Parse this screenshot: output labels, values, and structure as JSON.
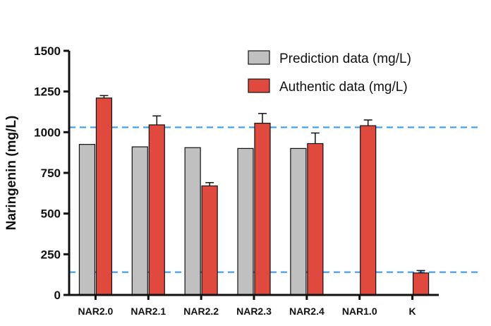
{
  "chart_data": {
    "type": "bar",
    "ylabel": "Naringenin (mg/L)",
    "xlabel": "",
    "ylim": [
      0,
      1500
    ],
    "yticks": [
      0,
      250,
      500,
      750,
      1000,
      1250,
      1500
    ],
    "categories": [
      "NAR2.0",
      "NAR2.1",
      "NAR2.2",
      "NAR2.3",
      "NAR2.4",
      "NAR1.0",
      "K"
    ],
    "series": [
      {
        "name": "Prediction data (mg/L)",
        "color": "#c0c0c0",
        "values": [
          925,
          910,
          905,
          900,
          900,
          null,
          null
        ],
        "errors": [
          0,
          0,
          0,
          0,
          0,
          null,
          null
        ]
      },
      {
        "name": "Authentic data (mg/L)",
        "color": "#e0493d",
        "values": [
          1210,
          1045,
          670,
          1055,
          930,
          1040,
          135
        ],
        "errors": [
          15,
          55,
          20,
          60,
          65,
          35,
          15
        ]
      }
    ],
    "reference_lines": [
      1030,
      140
    ],
    "reference_line_color": "#3b9cf0",
    "legend_position": "top-right",
    "grid": false
  }
}
